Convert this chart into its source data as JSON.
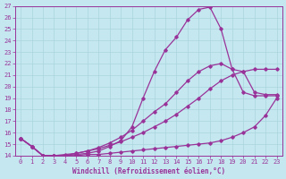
{
  "xlabel": "Windchill (Refroidissement éolien,°C)",
  "xlim": [
    -0.5,
    23.5
  ],
  "ylim": [
    14,
    27
  ],
  "xticks": [
    0,
    1,
    2,
    3,
    4,
    5,
    6,
    7,
    8,
    9,
    10,
    11,
    12,
    13,
    14,
    15,
    16,
    17,
    18,
    19,
    20,
    21,
    22,
    23
  ],
  "yticks": [
    14,
    15,
    16,
    17,
    18,
    19,
    20,
    21,
    22,
    23,
    24,
    25,
    26,
    27
  ],
  "bg_color": "#c5e8f0",
  "line_color": "#993399",
  "grid_color": "#aad4de",
  "series": [
    {
      "x": [
        0,
        1,
        2,
        3,
        4,
        5,
        6,
        7,
        8,
        9,
        10,
        11,
        12,
        13,
        14,
        15,
        16,
        17,
        18,
        19,
        20,
        21,
        22,
        23
      ],
      "y": [
        15.5,
        14.8,
        14.0,
        14.0,
        14.0,
        14.0,
        14.1,
        14.1,
        14.2,
        14.3,
        14.4,
        14.5,
        14.6,
        14.7,
        14.8,
        14.9,
        15.0,
        15.1,
        15.3,
        15.6,
        16.0,
        16.5,
        17.5,
        19.0
      ]
    },
    {
      "x": [
        0,
        1,
        2,
        3,
        4,
        5,
        6,
        7,
        8,
        9,
        10,
        11,
        12,
        13,
        14,
        15,
        16,
        17,
        18,
        19,
        20,
        21,
        22,
        23
      ],
      "y": [
        15.5,
        14.8,
        14.0,
        14.0,
        14.1,
        14.2,
        14.4,
        14.6,
        14.9,
        15.2,
        15.6,
        16.0,
        16.5,
        17.0,
        17.6,
        18.3,
        19.0,
        19.8,
        20.5,
        21.0,
        21.3,
        21.5,
        21.5,
        21.5
      ]
    },
    {
      "x": [
        0,
        1,
        2,
        3,
        4,
        5,
        6,
        7,
        8,
        9,
        10,
        11,
        12,
        13,
        14,
        15,
        16,
        17,
        18,
        19,
        20,
        21,
        22,
        23
      ],
      "y": [
        15.5,
        14.8,
        14.0,
        14.0,
        14.0,
        14.1,
        14.2,
        14.4,
        14.8,
        15.3,
        16.5,
        19.0,
        21.3,
        23.2,
        24.3,
        25.8,
        26.7,
        26.9,
        25.0,
        21.5,
        19.5,
        19.2,
        19.2,
        19.2
      ]
    },
    {
      "x": [
        0,
        1,
        2,
        3,
        4,
        5,
        6,
        7,
        8,
        9,
        10,
        11,
        12,
        13,
        14,
        15,
        16,
        17,
        18,
        19,
        20,
        21,
        22,
        23
      ],
      "y": [
        15.5,
        14.8,
        14.0,
        14.0,
        14.0,
        14.2,
        14.4,
        14.7,
        15.1,
        15.6,
        16.2,
        17.0,
        17.8,
        18.5,
        19.5,
        20.5,
        21.3,
        21.8,
        22.0,
        21.5,
        21.3,
        19.5,
        19.3,
        19.3
      ]
    }
  ]
}
